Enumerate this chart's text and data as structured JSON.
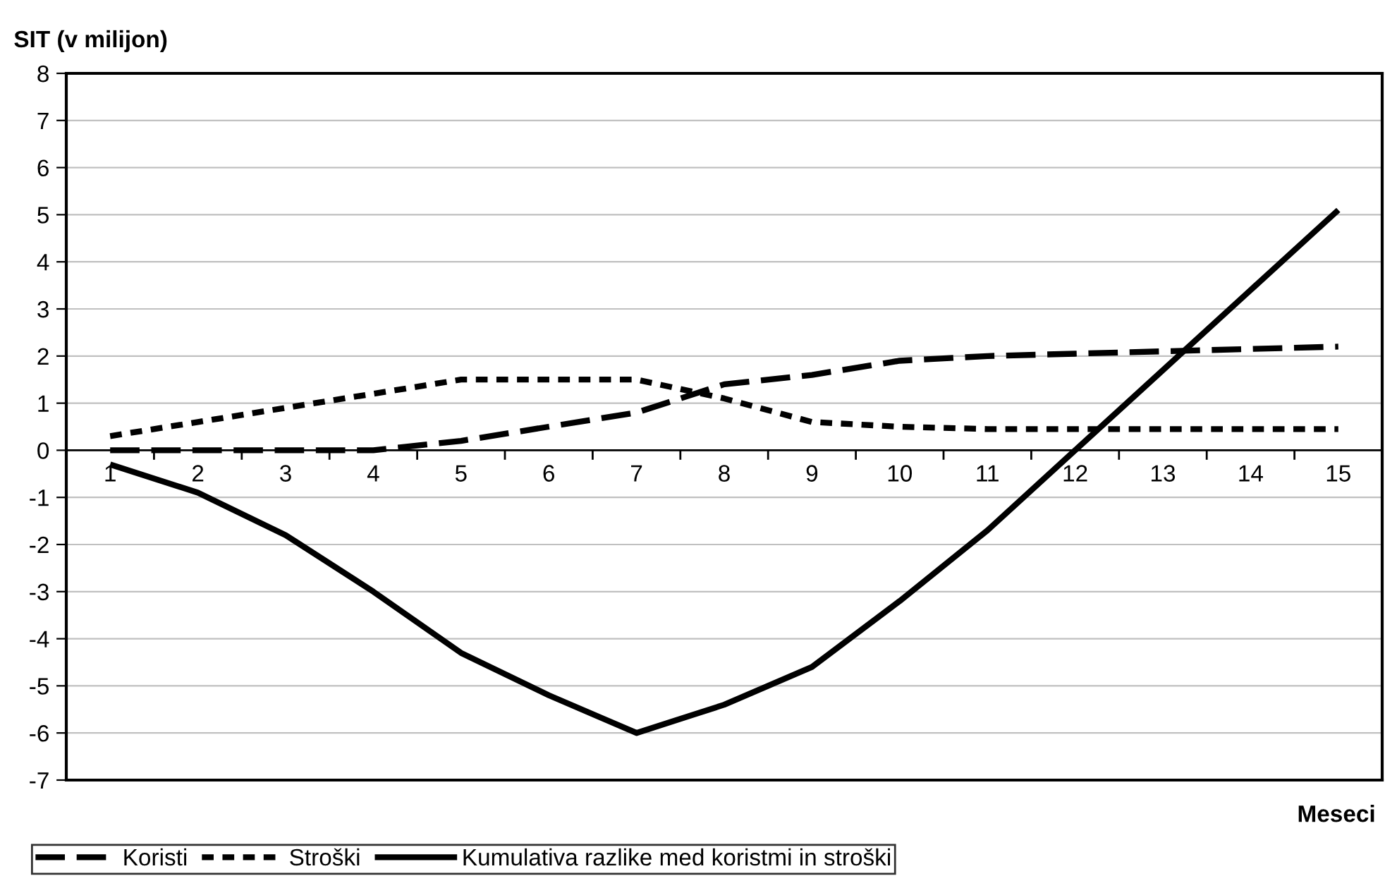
{
  "chart_data": {
    "type": "line",
    "ylabel": "SIT (v milijon)",
    "xlabel": "Meseci",
    "categories": [
      "1",
      "2",
      "3",
      "4",
      "5",
      "6",
      "7",
      "8",
      "9",
      "10",
      "11",
      "12",
      "13",
      "14",
      "15"
    ],
    "ylim": [
      -7,
      8
    ],
    "yticks": [
      -7,
      -6,
      -5,
      -4,
      -3,
      -2,
      -1,
      0,
      1,
      2,
      3,
      4,
      5,
      6,
      7,
      8
    ],
    "grid": "y",
    "legend": "bottom left",
    "marker": "none",
    "series": [
      {
        "name": "Koristi",
        "color": "#000000",
        "line_style": "dashed",
        "values": [
          0,
          0,
          0,
          0,
          0.2,
          0.5,
          0.8,
          1.4,
          1.6,
          1.9,
          2.0,
          2.05,
          2.1,
          2.15,
          2.2
        ]
      },
      {
        "name": "Stroški",
        "color": "#000000",
        "line_style": "dotted",
        "values": [
          0.3,
          0.6,
          0.9,
          1.2,
          1.5,
          1.5,
          1.5,
          1.1,
          0.6,
          0.5,
          0.45,
          0.45,
          0.45,
          0.45,
          0.45
        ]
      },
      {
        "name": "Kumulativa razlike med koristmi in stroški",
        "color": "#000000",
        "line_style": "solid",
        "values": [
          -0.3,
          -0.9,
          -1.8,
          -3.0,
          -4.3,
          -5.2,
          -6.0,
          -5.4,
          -4.6,
          -3.2,
          -1.7,
          0.0,
          1.7,
          3.4,
          5.1
        ]
      }
    ]
  }
}
